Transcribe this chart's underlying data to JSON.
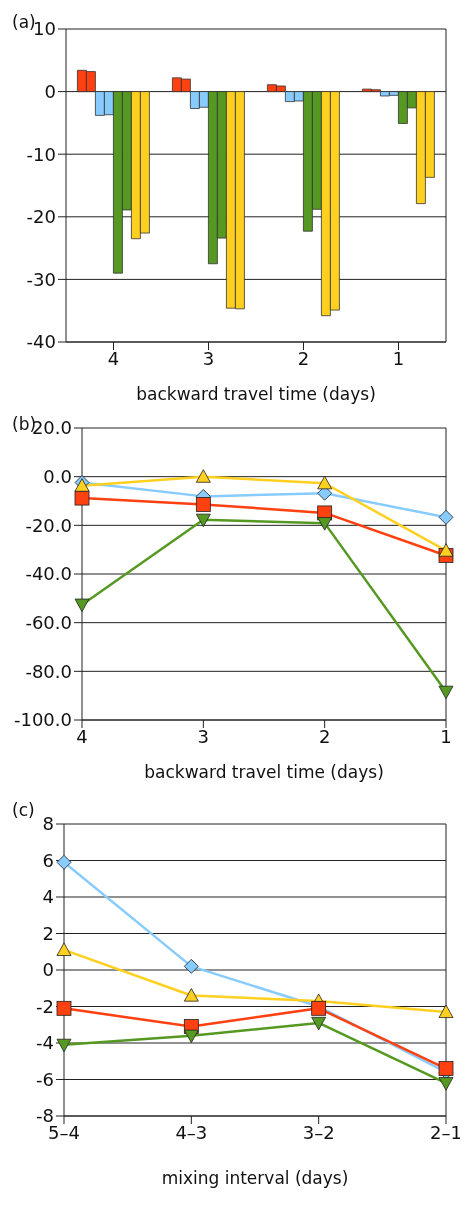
{
  "chart_data": [
    {
      "type": "bar",
      "title": "(a)",
      "xlabel": "backward travel time (days)",
      "categories": [
        "4",
        "3",
        "2",
        "1"
      ],
      "ylim": [
        -40,
        10
      ],
      "yticks": [
        -40,
        -30,
        -20,
        -10,
        0,
        10
      ],
      "grid": "y",
      "legend": false,
      "series": [
        {
          "color": "#ff4010",
          "values": [
            3.4,
            2.2,
            1.1,
            0.4
          ]
        },
        {
          "color": "#ff4010",
          "values": [
            3.2,
            2.0,
            0.9,
            0.3
          ]
        },
        {
          "color": "#88ccff",
          "values": [
            -3.8,
            -2.7,
            -1.6,
            -0.7
          ]
        },
        {
          "color": "#88ccff",
          "values": [
            -3.7,
            -2.5,
            -1.5,
            -0.6
          ]
        },
        {
          "color": "#559922",
          "values": [
            -29.0,
            -27.5,
            -22.3,
            -5.1
          ]
        },
        {
          "color": "#559922",
          "values": [
            -18.9,
            -23.4,
            -18.8,
            -2.6
          ]
        },
        {
          "color": "#ffd020",
          "values": [
            -23.5,
            -34.6,
            -35.8,
            -17.9
          ]
        },
        {
          "color": "#ffd020",
          "values": [
            -22.6,
            -34.7,
            -34.9,
            -13.7
          ]
        }
      ]
    },
    {
      "type": "line",
      "title": "(b)",
      "xlabel": "backward travel time (days)",
      "categories": [
        "4",
        "3",
        "2",
        "1"
      ],
      "ylim": [
        -100,
        20
      ],
      "yticks": [
        {
          "value": -100,
          "label": "-100.0"
        },
        {
          "value": -80,
          "label": "-80.0"
        },
        {
          "value": -60,
          "label": "-60.0"
        },
        {
          "value": -40,
          "label": "-40.0"
        },
        {
          "value": -20,
          "label": "-20.0"
        },
        {
          "value": 0,
          "label": "0.0"
        },
        {
          "value": 20,
          "label": "20.0"
        }
      ],
      "grid": "y",
      "legend": false,
      "line_style": "solid",
      "series": [
        {
          "color": "#88ccff",
          "marker": "diamond",
          "values": [
            -2.4,
            -8.1,
            -6.8,
            -16.7
          ]
        },
        {
          "color": "#ff4010",
          "marker": "square",
          "values": [
            -8.8,
            -11.4,
            -14.9,
            -32.4
          ]
        },
        {
          "color": "#ffd020",
          "marker": "triangle",
          "values": [
            -3.7,
            0.0,
            -2.7,
            -30.4
          ]
        },
        {
          "color": "#559922",
          "marker": "triangle-down",
          "values": [
            -52.6,
            -17.7,
            -19.1,
            -88.4
          ]
        }
      ]
    },
    {
      "type": "line",
      "title": "(c)",
      "xlabel": "mixing interval (days)",
      "categories": [
        "5–4",
        "4–3",
        "3–2",
        "2–1"
      ],
      "ylim": [
        -8,
        8
      ],
      "yticks": [
        -8,
        -6,
        -4,
        -2,
        0,
        2,
        4,
        6,
        8
      ],
      "grid": "y",
      "legend": false,
      "line_style": "solid",
      "series": [
        {
          "color": "#88ccff",
          "marker": "diamond",
          "values": [
            5.9,
            0.2,
            -2.0,
            -5.6
          ]
        },
        {
          "color": "#ffd020",
          "marker": "triangle",
          "values": [
            1.1,
            -1.4,
            -1.7,
            -2.3
          ]
        },
        {
          "color": "#ff4010",
          "marker": "square",
          "values": [
            -2.1,
            -3.1,
            -2.1,
            -5.4
          ]
        },
        {
          "color": "#559922",
          "marker": "triangle-down",
          "values": [
            -4.1,
            -3.6,
            -2.9,
            -6.2
          ]
        }
      ]
    }
  ]
}
